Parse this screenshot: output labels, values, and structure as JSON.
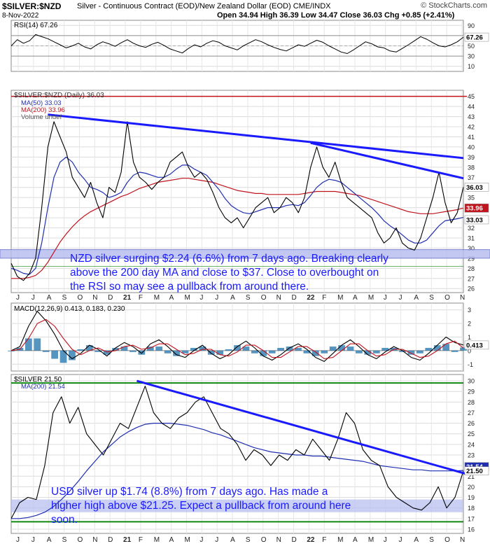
{
  "header": {
    "symbol": "$SILVER:$NZD",
    "description": "Silver - Continuous Contract (EOD)/New Zealand Dollar (EOD) CME/INDX",
    "date": "8-Nov-2022",
    "ohlc": "Open 34.94  High 36.39  Low 34.47  Close 36.03  Chg +0.85 (+2.41%)",
    "brand": "© StockCharts.com"
  },
  "annotations": {
    "nzd": [
      "NZD silver surging $2.24 (6.6%) from 7 days ago. Breaking clearly",
      "above the 200 day MA and close to $37. Close to overbought on",
      "the RSI so may see a pullback from around there."
    ],
    "usd": [
      "USD silver up $1.74 (8.8%) from 7 days ago. Has made a",
      "higher high above $21.25. Expect a pullback from around here",
      "soon."
    ]
  },
  "colors": {
    "price": "#000000",
    "ma50": "#1f2fb0",
    "ma200": "#c0141e",
    "annotation": "#1a1aff",
    "trendline": "#1a1aff",
    "green_line": "#118811",
    "band": "#b8bff0"
  },
  "chart_data": [
    {
      "type": "line",
      "name": "rsi",
      "label": "RSI(14) 67.26",
      "value_tag": "67.26",
      "yticks": [
        10,
        30,
        50,
        70,
        90
      ],
      "ylim": [
        0,
        100
      ],
      "values": [
        50,
        62,
        55,
        60,
        72,
        68,
        64,
        58,
        52,
        46,
        50,
        55,
        48,
        44,
        52,
        58,
        54,
        49,
        56,
        62,
        55,
        50,
        47,
        53,
        57,
        51,
        44,
        40,
        36,
        45,
        52,
        48,
        55,
        60,
        57,
        50,
        46,
        42,
        50,
        56,
        62,
        58,
        52,
        47,
        43,
        40,
        46,
        52,
        49,
        55,
        61,
        57,
        50,
        44,
        38,
        35,
        42,
        50,
        58,
        54,
        48,
        46,
        40,
        38,
        45,
        52,
        60,
        68,
        63,
        56,
        50,
        48,
        52,
        58,
        67
      ]
    },
    {
      "type": "line",
      "name": "nzd-price",
      "label": "$SILVER:$NZD (Daily) 36.03",
      "legend": [
        "MA(50) 33.03",
        "MA(200) 33.96",
        "Volume undef"
      ],
      "value_tags": [
        "36.03",
        "33.96",
        "33.03"
      ],
      "yticks": [
        26,
        27,
        28,
        29,
        30,
        31,
        32,
        33,
        34,
        35,
        36,
        37,
        38,
        39,
        40,
        41,
        42,
        43,
        44,
        45
      ],
      "ylim": [
        25.6,
        45.6
      ],
      "price": [
        28.5,
        27.2,
        26.8,
        27.5,
        29.0,
        34.0,
        40.0,
        42.5,
        41.0,
        39.5,
        37.0,
        36.0,
        35.0,
        36.5,
        34.5,
        33.0,
        36.0,
        35.5,
        37.5,
        42.5,
        38.5,
        37.0,
        36.5,
        35.8,
        36.5,
        37.0,
        38.5,
        39.0,
        39.5,
        38.0,
        37.0,
        37.5,
        36.8,
        35.5,
        34.0,
        33.0,
        32.5,
        33.0,
        32.0,
        33.0,
        34.0,
        34.5,
        35.0,
        33.5,
        34.0,
        35.0,
        34.5,
        33.5,
        35.0,
        38.0,
        40.0,
        38.0,
        37.0,
        38.5,
        36.5,
        35.0,
        34.5,
        34.0,
        33.5,
        33.0,
        31.5,
        30.5,
        31.0,
        32.0,
        30.5,
        30.0,
        29.8,
        31.0,
        33.0,
        35.0,
        37.5,
        34.5,
        32.5,
        33.5,
        36.03
      ],
      "ma50": [
        28.0,
        27.8,
        27.5,
        27.4,
        28.0,
        30.5,
        34.0,
        37.0,
        38.5,
        39.0,
        38.5,
        37.5,
        36.8,
        36.0,
        35.8,
        35.5,
        35.0,
        35.2,
        35.5,
        36.5,
        37.2,
        37.5,
        37.4,
        37.2,
        37.0,
        37.0,
        37.3,
        37.8,
        38.2,
        38.2,
        37.8,
        37.5,
        37.2,
        36.5,
        35.8,
        34.9,
        34.2,
        33.8,
        33.5,
        33.4,
        33.6,
        33.8,
        34.0,
        34.0,
        34.0,
        34.2,
        34.3,
        34.2,
        34.5,
        35.2,
        36.0,
        36.5,
        36.8,
        36.7,
        36.5,
        36.0,
        35.5,
        35.0,
        34.5,
        34.0,
        33.4,
        32.7,
        32.2,
        31.8,
        31.3,
        30.8,
        30.5,
        30.5,
        30.8,
        31.5,
        32.2,
        32.7,
        32.8,
        32.9,
        33.03
      ],
      "ma200": [
        27.0,
        27.0,
        27.0,
        27.1,
        27.3,
        27.8,
        28.6,
        29.6,
        30.6,
        31.4,
        32.1,
        32.7,
        33.2,
        33.6,
        33.9,
        34.2,
        34.5,
        34.8,
        35.1,
        35.3,
        35.6,
        35.9,
        36.1,
        36.3,
        36.5,
        36.6,
        36.7,
        36.8,
        36.9,
        36.9,
        36.8,
        36.7,
        36.6,
        36.5,
        36.3,
        36.1,
        35.9,
        35.7,
        35.6,
        35.5,
        35.4,
        35.4,
        35.3,
        35.3,
        35.3,
        35.3,
        35.3,
        35.3,
        35.4,
        35.5,
        35.6,
        35.6,
        35.6,
        35.6,
        35.5,
        35.4,
        35.3,
        35.2,
        35.0,
        34.8,
        34.6,
        34.4,
        34.2,
        34.0,
        33.8,
        33.6,
        33.5,
        33.4,
        33.4,
        33.4,
        33.5,
        33.6,
        33.7,
        33.8,
        33.96
      ],
      "xticks": [
        "J",
        "J",
        "A",
        "S",
        "O",
        "N",
        "D",
        "21",
        "F",
        "M",
        "A",
        "M",
        "J",
        "J",
        "A",
        "S",
        "O",
        "N",
        "D",
        "22",
        "F",
        "M",
        "A",
        "M",
        "J",
        "J",
        "A",
        "S",
        "O",
        "N"
      ]
    },
    {
      "type": "line",
      "name": "macd",
      "label": "MACD(12,26,9) 0.413, 0.183, 0.230",
      "value_tag": "0.413",
      "yticks": [
        -1,
        0,
        1,
        2,
        3
      ],
      "ylim": [
        -1.5,
        3.5
      ],
      "macd": [
        0.0,
        0.3,
        1.8,
        2.9,
        2.2,
        1.2,
        0.0,
        -0.6,
        -0.2,
        0.4,
        0.1,
        -0.4,
        0.2,
        0.6,
        0.3,
        -0.2,
        0.5,
        0.8,
        0.3,
        -0.3,
        -0.5,
        0.0,
        0.4,
        -0.2,
        -0.6,
        -0.3,
        0.3,
        0.7,
        0.2,
        -0.4,
        -0.7,
        -0.3,
        0.2,
        0.5,
        0.1,
        -0.5,
        -0.8,
        -0.2,
        0.4,
        0.8,
        0.3,
        -0.3,
        -0.6,
        -0.1,
        0.3,
        0.0,
        -0.5,
        -0.7,
        -0.2,
        0.4,
        1.0,
        0.6,
        0.413
      ],
      "signal": [
        0.0,
        0.1,
        0.9,
        2.0,
        2.3,
        1.8,
        0.9,
        0.1,
        -0.3,
        0.0,
        0.2,
        -0.1,
        0.0,
        0.3,
        0.4,
        0.1,
        0.2,
        0.5,
        0.5,
        0.1,
        -0.3,
        -0.2,
        0.1,
        0.1,
        -0.3,
        -0.4,
        -0.1,
        0.4,
        0.4,
        0.0,
        -0.5,
        -0.5,
        -0.1,
        0.3,
        0.3,
        -0.1,
        -0.6,
        -0.5,
        0.0,
        0.5,
        0.5,
        0.0,
        -0.4,
        -0.3,
        0.1,
        0.1,
        -0.2,
        -0.5,
        -0.4,
        0.0,
        0.5,
        0.7,
        0.183
      ]
    },
    {
      "type": "line",
      "name": "usd-price",
      "label": "$SILVER 21.50",
      "legend": [
        "MA(200) 21.54"
      ],
      "value_tags": [
        "21.54",
        "21.50"
      ],
      "yticks": [
        16,
        17,
        18,
        19,
        20,
        21,
        22,
        23,
        24,
        25,
        26,
        27,
        28,
        29,
        30
      ],
      "ylim": [
        15.6,
        30.6
      ],
      "price": [
        17.0,
        18.5,
        19.0,
        18.8,
        22.0,
        27.0,
        28.5,
        26.0,
        27.5,
        25.0,
        24.0,
        23.0,
        24.5,
        26.0,
        25.5,
        27.5,
        29.5,
        27.0,
        26.0,
        25.5,
        26.5,
        27.0,
        28.0,
        28.5,
        27.0,
        25.5,
        25.0,
        24.0,
        22.5,
        23.5,
        23.0,
        22.0,
        23.0,
        22.5,
        23.5,
        23.0,
        24.5,
        23.5,
        22.5,
        24.5,
        27.0,
        26.0,
        23.5,
        22.5,
        22.0,
        20.0,
        19.0,
        18.5,
        18.0,
        17.8,
        18.5,
        20.0,
        18.0,
        19.0,
        21.5
      ],
      "ma200": [
        17.0,
        17.0,
        17.1,
        17.3,
        17.6,
        18.1,
        18.8,
        19.6,
        20.5,
        21.5,
        22.4,
        23.3,
        24.0,
        24.7,
        25.2,
        25.6,
        25.9,
        26.0,
        26.0,
        26.0,
        25.9,
        25.8,
        25.6,
        25.4,
        25.1,
        24.9,
        24.6,
        24.3,
        24.0,
        23.7,
        23.5,
        23.3,
        23.2,
        23.1,
        23.0,
        23.0,
        22.9,
        22.9,
        22.8,
        22.7,
        22.6,
        22.5,
        22.4,
        22.2,
        22.0,
        21.9,
        21.8,
        21.7,
        21.6,
        21.6,
        21.5,
        21.5,
        21.5,
        21.5,
        21.54
      ],
      "xticks": [
        "J",
        "J",
        "A",
        "S",
        "O",
        "N",
        "D",
        "21",
        "F",
        "M",
        "A",
        "M",
        "J",
        "J",
        "A",
        "S",
        "O",
        "N",
        "D",
        "22",
        "F",
        "M",
        "A",
        "M",
        "J",
        "J",
        "A",
        "S",
        "O",
        "N"
      ]
    }
  ]
}
